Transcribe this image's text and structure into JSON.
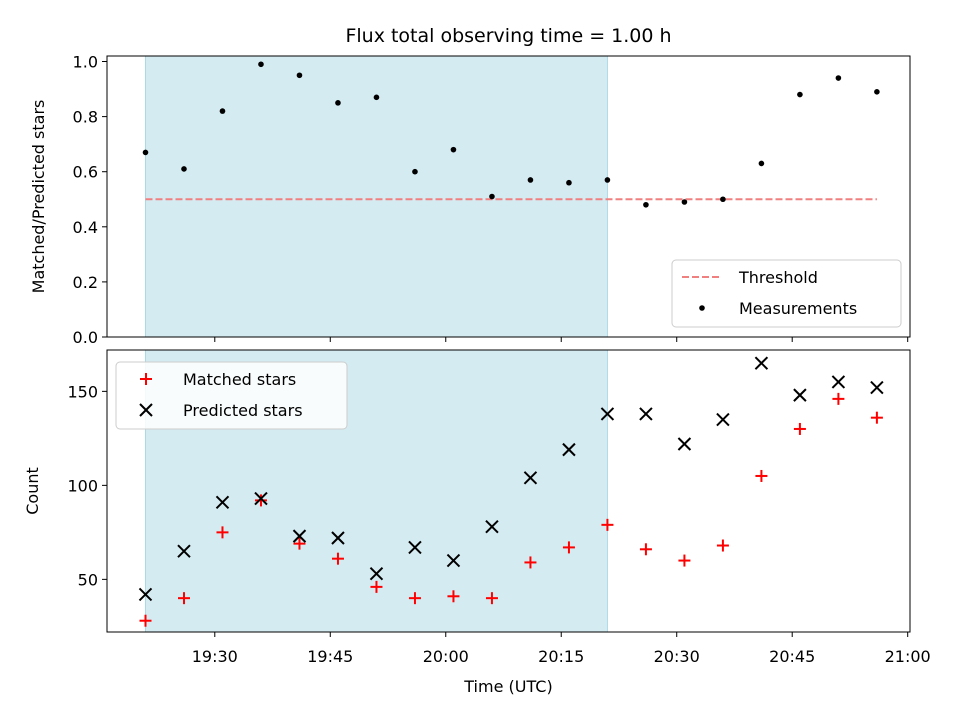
{
  "chart_data": [
    {
      "type": "scatter",
      "title": "Flux total observing time = 1.00 h",
      "xlabel": "",
      "ylabel": "Matched/Predicted stars",
      "ylim": [
        0.0,
        1.02
      ],
      "yticks": [
        "0.0",
        "0.2",
        "0.4",
        "0.6",
        "0.8",
        "1.0"
      ],
      "legend_position": "lower-right",
      "shaded_interval": [
        "19:21",
        "20:21"
      ],
      "threshold": {
        "name": "Threshold",
        "y": 0.5,
        "x": [
          "19:21",
          "20:56"
        ],
        "color": "#f08080"
      },
      "series": [
        {
          "name": "Measurements",
          "color": "#000000",
          "x": [
            "19:21",
            "19:26",
            "19:31",
            "19:36",
            "19:41",
            "19:46",
            "19:51",
            "19:56",
            "20:01",
            "20:06",
            "20:11",
            "20:16",
            "20:21",
            "20:26",
            "20:31",
            "20:36",
            "20:41",
            "20:46",
            "20:51",
            "20:56"
          ],
          "y": [
            0.67,
            0.61,
            0.82,
            0.99,
            0.95,
            0.85,
            0.87,
            0.6,
            0.68,
            0.51,
            0.57,
            0.56,
            0.57,
            0.48,
            0.49,
            0.5,
            0.63,
            0.88,
            0.94,
            0.89
          ]
        }
      ]
    },
    {
      "type": "scatter",
      "title": "",
      "xlabel": "Time (UTC)",
      "ylabel": "Count",
      "ylim": [
        22,
        172
      ],
      "yticks": [
        "50",
        "100",
        "150"
      ],
      "xticks": [
        "19:30",
        "19:45",
        "20:00",
        "20:15",
        "20:30",
        "20:45",
        "21:00"
      ],
      "xlim": [
        "19:16",
        "21:00"
      ],
      "legend_position": "upper-left",
      "shaded_interval": [
        "19:21",
        "20:21"
      ],
      "series": [
        {
          "name": "Matched stars",
          "marker": "plus",
          "color": "#ff0000",
          "x": [
            "19:21",
            "19:26",
            "19:31",
            "19:36",
            "19:41",
            "19:46",
            "19:51",
            "19:56",
            "20:01",
            "20:06",
            "20:11",
            "20:16",
            "20:21",
            "20:26",
            "20:31",
            "20:36",
            "20:41",
            "20:46",
            "20:51",
            "20:56"
          ],
          "y": [
            28,
            40,
            75,
            92,
            69,
            61,
            46,
            40,
            41,
            40,
            59,
            67,
            79,
            66,
            60,
            68,
            105,
            130,
            146,
            136
          ]
        },
        {
          "name": "Predicted stars",
          "marker": "x",
          "color": "#000000",
          "x": [
            "19:21",
            "19:26",
            "19:31",
            "19:36",
            "19:41",
            "19:46",
            "19:51",
            "19:56",
            "20:01",
            "20:06",
            "20:11",
            "20:16",
            "20:21",
            "20:26",
            "20:31",
            "20:36",
            "20:41",
            "20:46",
            "20:51",
            "20:56"
          ],
          "y": [
            42,
            65,
            91,
            93,
            73,
            72,
            53,
            67,
            60,
            78,
            104,
            119,
            138,
            138,
            122,
            135,
            165,
            148,
            155,
            152
          ]
        }
      ]
    }
  ],
  "colors": {
    "shade": "#add8e6",
    "axes": "#000000"
  }
}
